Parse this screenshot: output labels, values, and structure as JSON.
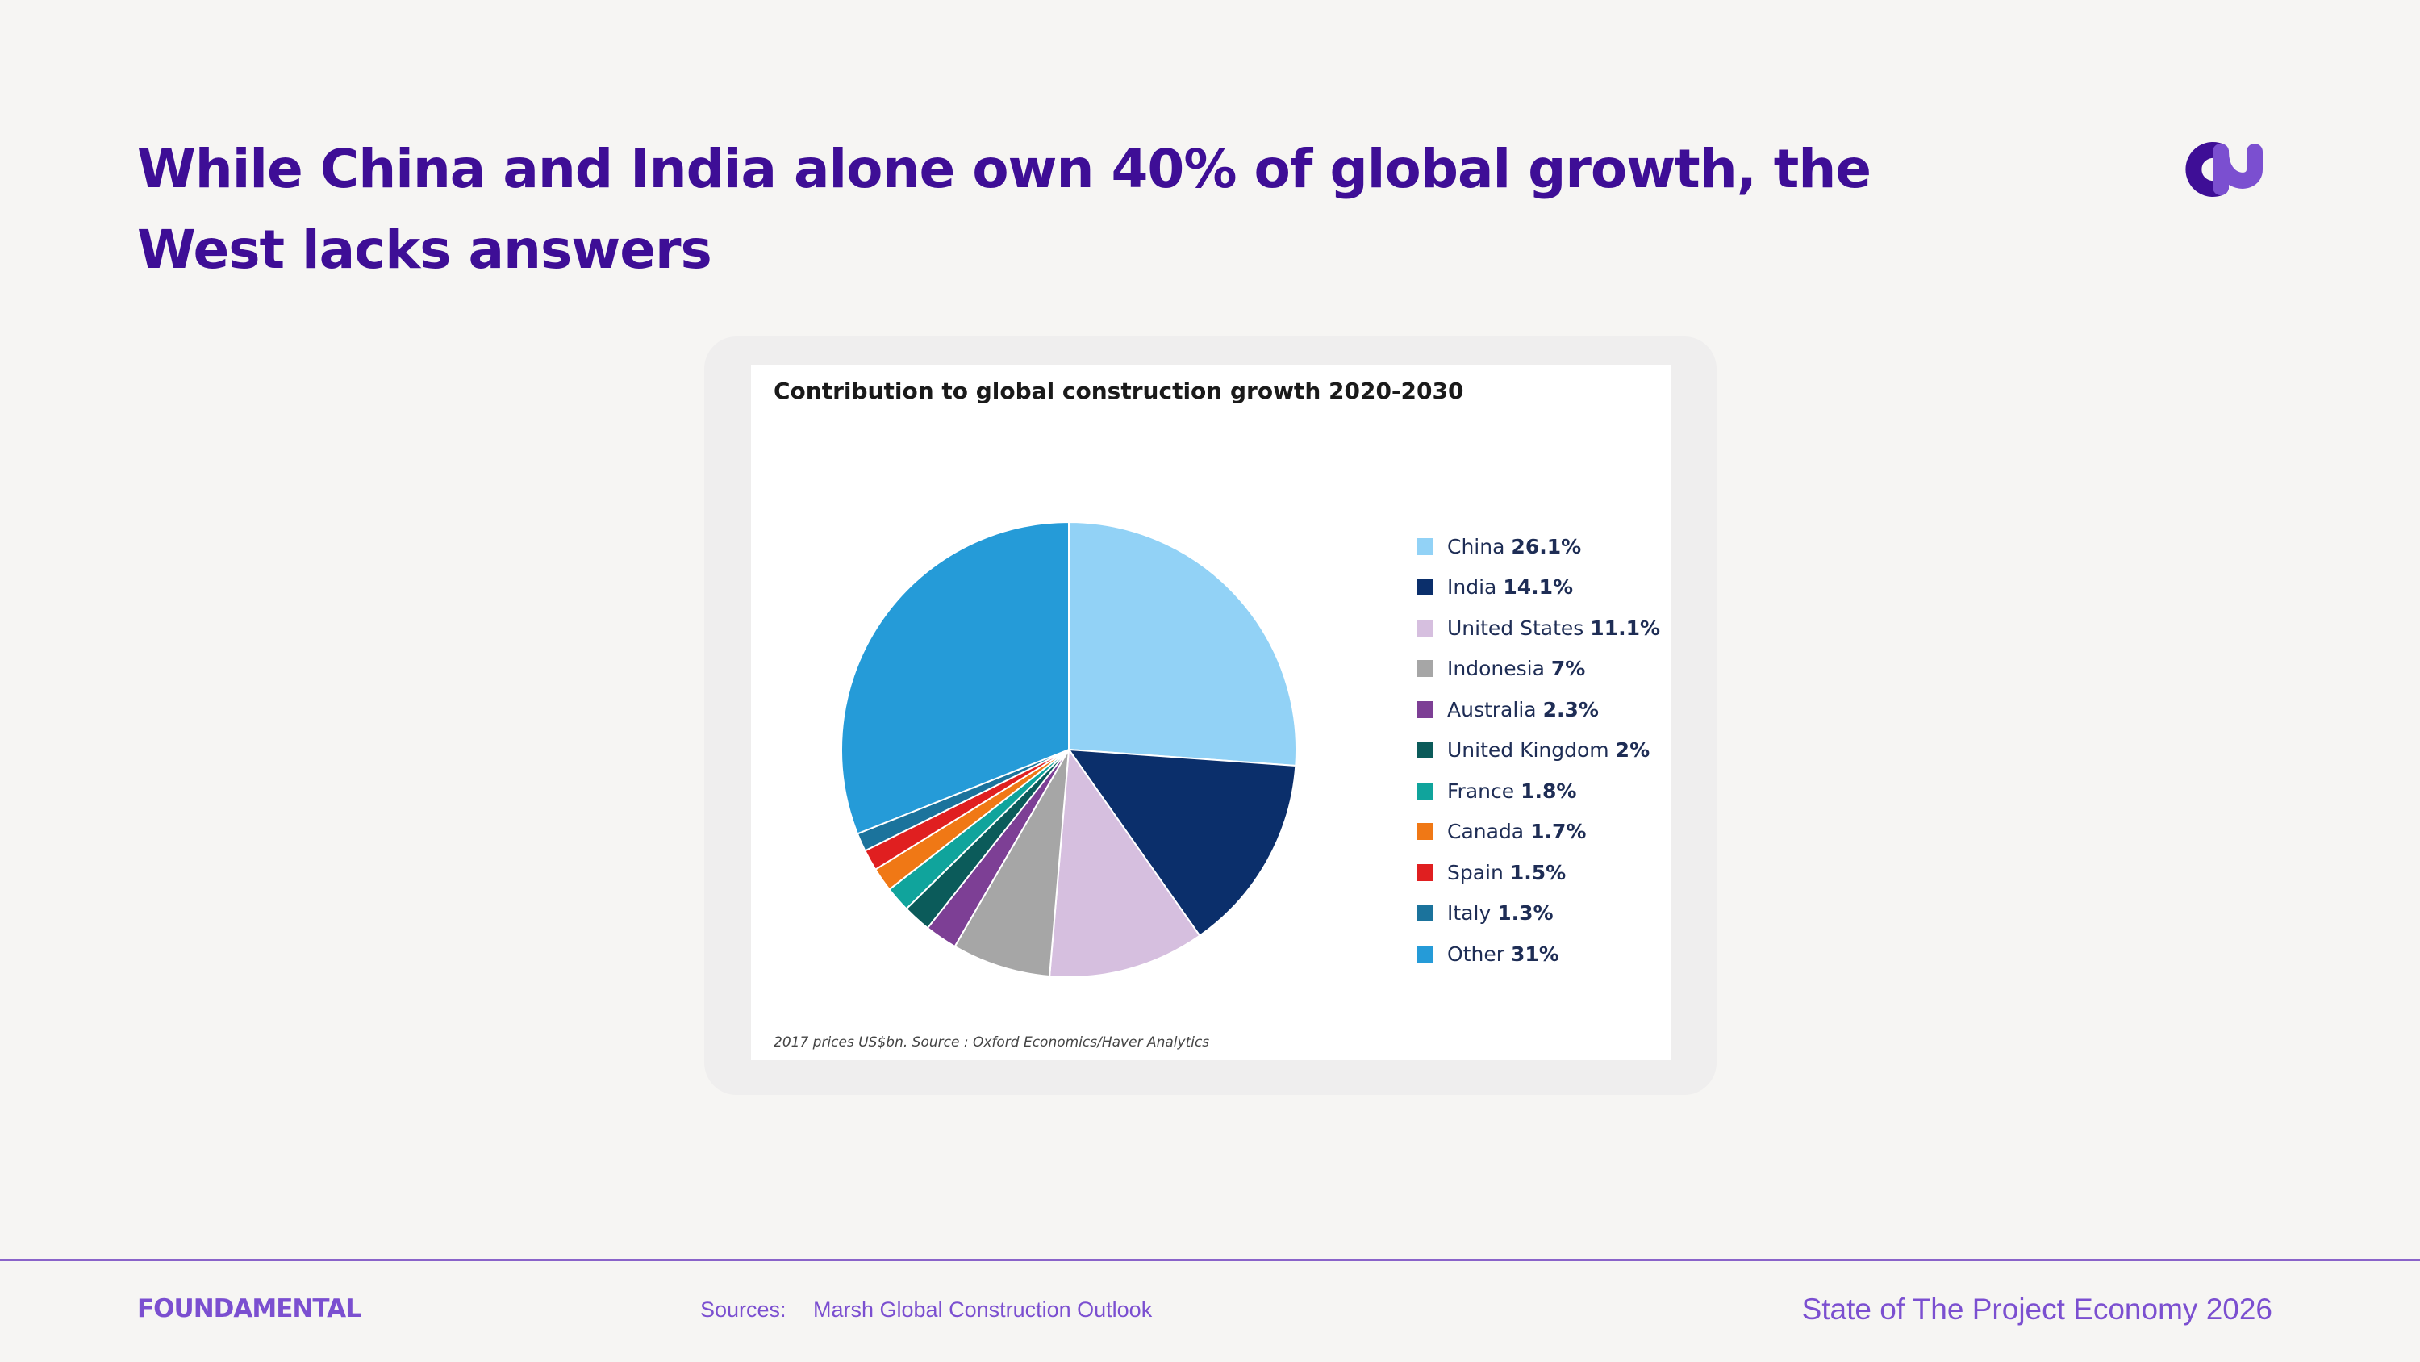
{
  "slide": {
    "headline": "While China and India alone own 40% of global growth, the West lacks answers"
  },
  "footer": {
    "brand": "FOUNDAMENTAL",
    "sources_label": "Sources:",
    "sources_value": "Marsh Global Construction Outlook",
    "report_title": "State of The Project Economy 2026"
  },
  "colors": {
    "headline": "#3e0e96",
    "accent": "#7b4fd0"
  },
  "chart_data": {
    "type": "pie",
    "title": "Contribution to global construction growth 2020-2030",
    "note": "2017 prices US$bn. Source : Oxford Economics/Haver Analytics",
    "legend_position": "right",
    "slices": [
      {
        "label": "China",
        "value": 26.1,
        "display": "26.1%",
        "color": "#92d2f6"
      },
      {
        "label": "India",
        "value": 14.1,
        "display": "14.1%",
        "color": "#0b2f6b"
      },
      {
        "label": "United States",
        "value": 11.1,
        "display": "11.1%",
        "color": "#d6bfdf"
      },
      {
        "label": "Indonesia",
        "value": 7,
        "display": "7%",
        "color": "#a6a6a6"
      },
      {
        "label": "Australia",
        "value": 2.3,
        "display": "2.3%",
        "color": "#7d3f95"
      },
      {
        "label": "United Kingdom",
        "value": 2,
        "display": "2%",
        "color": "#0b5b5a"
      },
      {
        "label": "France",
        "value": 1.8,
        "display": "1.8%",
        "color": "#10a49c"
      },
      {
        "label": "Canada",
        "value": 1.7,
        "display": "1.7%",
        "color": "#f07815"
      },
      {
        "label": "Spain",
        "value": 1.5,
        "display": "1.5%",
        "color": "#e01f20"
      },
      {
        "label": "Italy",
        "value": 1.3,
        "display": "1.3%",
        "color": "#1b739c"
      },
      {
        "label": "Other",
        "value": 31,
        "display": "31%",
        "color": "#259bd8"
      }
    ]
  }
}
